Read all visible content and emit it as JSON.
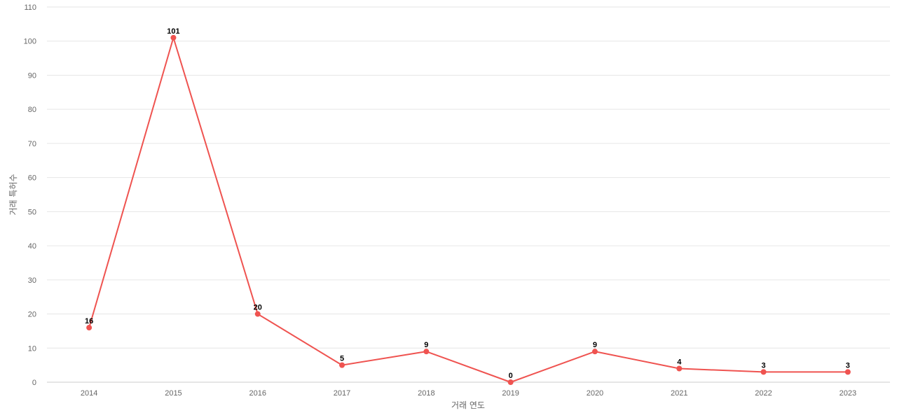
{
  "chart_data": {
    "type": "line",
    "categories": [
      "2014",
      "2015",
      "2016",
      "2017",
      "2018",
      "2019",
      "2020",
      "2021",
      "2022",
      "2023"
    ],
    "series": [
      {
        "values": [
          16,
          101,
          20,
          5,
          9,
          0,
          9,
          4,
          3,
          3
        ],
        "color": "#ef5350"
      }
    ],
    "xlabel": "거래 연도",
    "ylabel": "거래 특허수",
    "ylim": [
      0,
      110
    ],
    "yticks": [
      0,
      10,
      20,
      30,
      40,
      50,
      60,
      70,
      80,
      90,
      100,
      110
    ],
    "grid": true,
    "data_labels": true,
    "legend": "none",
    "colors": {
      "grid": "#e6e6e6",
      "axis": "#cccccc",
      "tick_text": "#666666",
      "label_text": "#000000"
    }
  }
}
